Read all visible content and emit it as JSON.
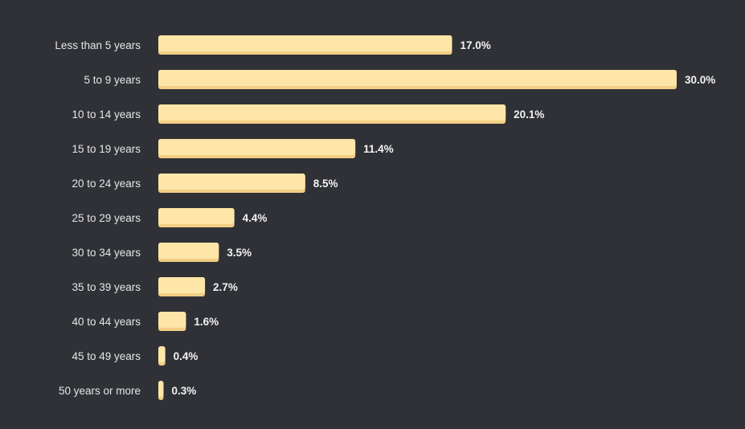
{
  "chart_data": {
    "type": "bar",
    "orientation": "horizontal",
    "categories": [
      "Less than 5 years",
      "5 to 9 years",
      "10 to 14 years",
      "15 to 19 years",
      "20 to 24 years",
      "25 to 29 years",
      "30 to 34 years",
      "35 to 39 years",
      "40 to 44 years",
      "45 to 49 years",
      "50 years or more"
    ],
    "values": [
      17.0,
      30.0,
      20.1,
      11.4,
      8.5,
      4.4,
      3.5,
      2.7,
      1.6,
      0.4,
      0.3
    ],
    "value_labels": [
      "17.0%",
      "30.0%",
      "20.1%",
      "11.4%",
      "8.5%",
      "4.4%",
      "3.5%",
      "2.7%",
      "1.6%",
      "0.4%",
      "0.3%"
    ],
    "xlim": [
      0,
      30
    ],
    "grid": false,
    "legend": "none",
    "colors": {
      "background": "#2f3136",
      "bar": "#fde6a8",
      "bar_shadow": "#f2cf85",
      "category_text": "#e6e6e6",
      "value_text": "#f2f2f2"
    }
  }
}
